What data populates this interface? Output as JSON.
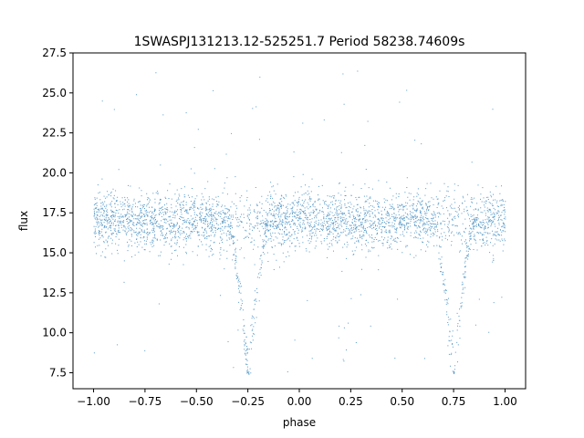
{
  "chart_data": {
    "type": "scatter",
    "title": "1SWASPJ131213.12-525251.7 Period 58238.74609s",
    "xlabel": "phase",
    "ylabel": "flux",
    "xlim": [
      -1.1,
      1.1
    ],
    "ylim": [
      6.5,
      27.5
    ],
    "xticks": [
      -1.0,
      -0.75,
      -0.5,
      -0.25,
      0.0,
      0.25,
      0.5,
      0.75,
      1.0
    ],
    "xtick_labels": [
      "−1.00",
      "−0.75",
      "−0.50",
      "−0.25",
      "0.00",
      "0.25",
      "0.50",
      "0.75",
      "1.00"
    ],
    "yticks": [
      7.5,
      10.0,
      12.5,
      15.0,
      17.5,
      20.0,
      22.5,
      25.0,
      27.5
    ],
    "ytick_labels": [
      "7.5",
      "10.0",
      "12.5",
      "15.0",
      "17.5",
      "20.0",
      "22.5",
      "25.0",
      "27.5"
    ],
    "grid": false,
    "legend": "none",
    "marker_color": "#1f77b4",
    "series": [
      {
        "baseline_flux": 17.0,
        "baseline_scatter_min": 15.0,
        "baseline_scatter_max": 19.5,
        "outlier_range": [
          7.5,
          26.5
        ],
        "phase_range": [
          -1.0,
          1.0
        ],
        "eclipses": [
          {
            "center_phase": -0.25,
            "min_flux": 7.4,
            "half_width_phase": 0.1
          },
          {
            "center_phase": 0.75,
            "min_flux": 7.4,
            "half_width_phase": 0.1
          }
        ]
      }
    ]
  }
}
